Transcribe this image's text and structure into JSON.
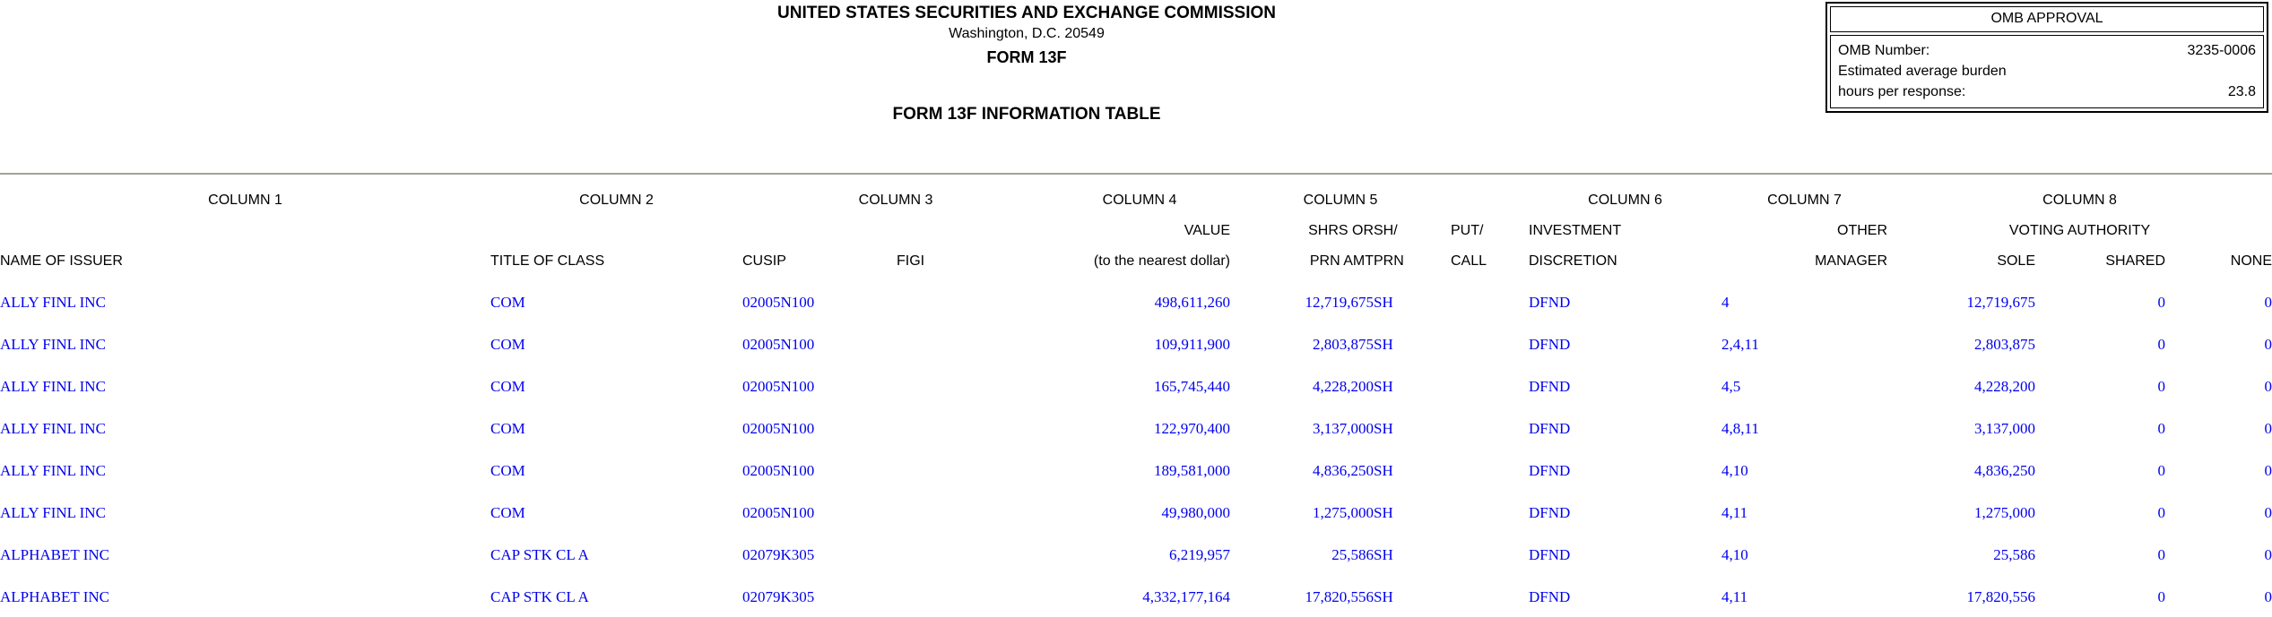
{
  "header": {
    "agency": "UNITED STATES SECURITIES AND EXCHANGE COMMISSION",
    "address": "Washington, D.C. 20549",
    "form_name": "FORM 13F",
    "table_title": "FORM 13F INFORMATION TABLE"
  },
  "omb": {
    "title": "OMB APPROVAL",
    "number_label": "OMB Number:",
    "number_value": "3235-0006",
    "burden_label_line1": "Estimated average burden",
    "burden_label_line2": "hours per response:",
    "burden_value": "23.8"
  },
  "colors": {
    "data_text_blue": "#0000EE",
    "rule_gray": "#a2a29d"
  },
  "table": {
    "column_groups": {
      "c1": "COLUMN 1",
      "c2": "COLUMN 2",
      "c3": "COLUMN 3",
      "c4": "COLUMN 4",
      "c5": "COLUMN 5",
      "c6": "COLUMN 6",
      "c7": "COLUMN 7",
      "c8": "COLUMN 8"
    },
    "subheader": {
      "value": "VALUE",
      "shrs_or": "SHRS OR",
      "sh": "SH/",
      "put": "PUT/",
      "investment": "INVESTMENT",
      "other": "OTHER",
      "voting_authority": "VOTING AUTHORITY"
    },
    "columns": {
      "issuer": "NAME OF ISSUER",
      "title_of_class": "TITLE OF CLASS",
      "cusip": "CUSIP",
      "figi": "FIGI",
      "value_note": "(to the nearest dollar)",
      "prn_amt": "PRN AMT",
      "prn": "PRN",
      "call": "CALL",
      "discretion": "DISCRETION",
      "manager": "MANAGER",
      "sole": "SOLE",
      "shared": "SHARED",
      "none": "NONE"
    },
    "rows": [
      [
        "ALLY FINL INC",
        "COM",
        "02005N100",
        "",
        "498,611,260",
        "12,719,675",
        "SH",
        "",
        "DFND",
        "4",
        "12,719,675",
        "0",
        "0"
      ],
      [
        "ALLY FINL INC",
        "COM",
        "02005N100",
        "",
        "109,911,900",
        "2,803,875",
        "SH",
        "",
        "DFND",
        "2,4,11",
        "2,803,875",
        "0",
        "0"
      ],
      [
        "ALLY FINL INC",
        "COM",
        "02005N100",
        "",
        "165,745,440",
        "4,228,200",
        "SH",
        "",
        "DFND",
        "4,5",
        "4,228,200",
        "0",
        "0"
      ],
      [
        "ALLY FINL INC",
        "COM",
        "02005N100",
        "",
        "122,970,400",
        "3,137,000",
        "SH",
        "",
        "DFND",
        "4,8,11",
        "3,137,000",
        "0",
        "0"
      ],
      [
        "ALLY FINL INC",
        "COM",
        "02005N100",
        "",
        "189,581,000",
        "4,836,250",
        "SH",
        "",
        "DFND",
        "4,10",
        "4,836,250",
        "0",
        "0"
      ],
      [
        "ALLY FINL INC",
        "COM",
        "02005N100",
        "",
        "49,980,000",
        "1,275,000",
        "SH",
        "",
        "DFND",
        "4,11",
        "1,275,000",
        "0",
        "0"
      ],
      [
        "ALPHABET INC",
        "CAP STK CL A",
        "02079K305",
        "",
        "6,219,957",
        "25,586",
        "SH",
        "",
        "DFND",
        "4,10",
        "25,586",
        "0",
        "0"
      ],
      [
        "ALPHABET INC",
        "CAP STK CL A",
        "02079K305",
        "",
        "4,332,177,164",
        "17,820,556",
        "SH",
        "",
        "DFND",
        "4,11",
        "17,820,556",
        "0",
        "0"
      ]
    ]
  }
}
